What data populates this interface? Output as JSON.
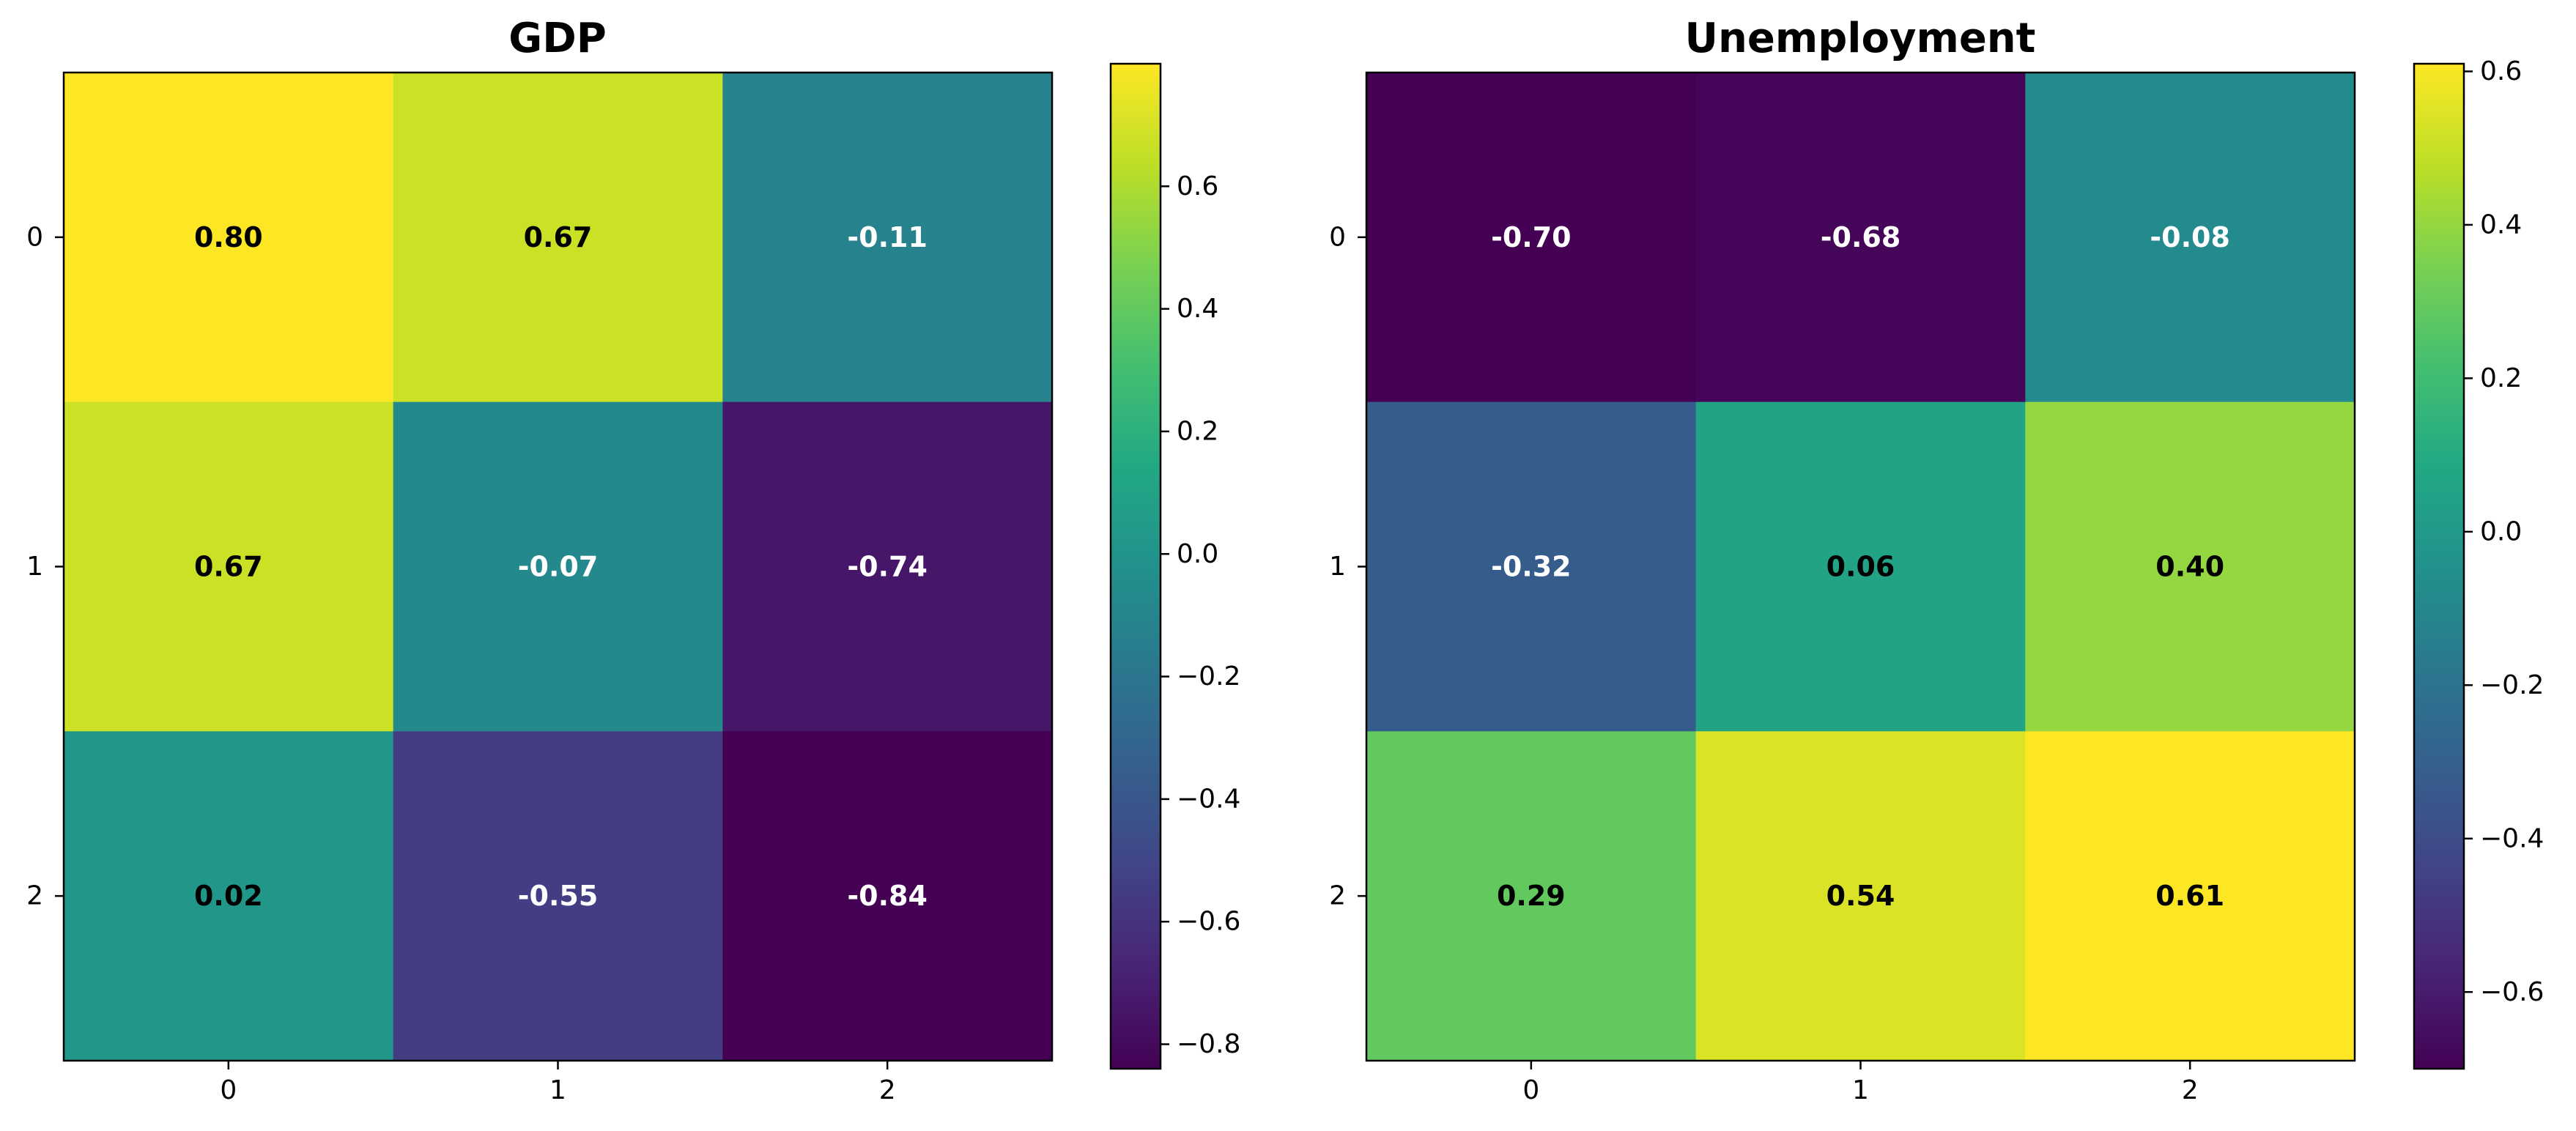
{
  "chart_data": [
    {
      "type": "heatmap",
      "title": "GDP",
      "xlabel": "",
      "ylabel": "",
      "x_ticks": [
        "0",
        "1",
        "2"
      ],
      "y_ticks": [
        "0",
        "1",
        "2"
      ],
      "values": [
        [
          0.8,
          0.67,
          -0.11
        ],
        [
          0.67,
          -0.07,
          -0.74
        ],
        [
          0.02,
          -0.55,
          -0.84
        ]
      ],
      "cell_labels": [
        [
          "0.80",
          "0.67",
          "-0.11"
        ],
        [
          "0.67",
          "-0.07",
          "-0.74"
        ],
        [
          "0.02",
          "-0.55",
          "-0.84"
        ]
      ],
      "colormap": "viridis",
      "color_range": [
        -0.84,
        0.8
      ],
      "colorbar_ticks": [
        -0.8,
        -0.6,
        -0.4,
        -0.2,
        0.0,
        0.2,
        0.4,
        0.6
      ],
      "colorbar_tick_labels": [
        "−0.8",
        "−0.6",
        "−0.4",
        "−0.2",
        "0.0",
        "0.2",
        "0.4",
        "0.6"
      ],
      "grid": false,
      "legend": "colorbar-right"
    },
    {
      "type": "heatmap",
      "title": "Unemployment",
      "xlabel": "",
      "ylabel": "",
      "x_ticks": [
        "0",
        "1",
        "2"
      ],
      "y_ticks": [
        "0",
        "1",
        "2"
      ],
      "values": [
        [
          -0.7,
          -0.68,
          -0.08
        ],
        [
          -0.32,
          0.06,
          0.4
        ],
        [
          0.29,
          0.54,
          0.61
        ]
      ],
      "cell_labels": [
        [
          "-0.70",
          "-0.68",
          "-0.08"
        ],
        [
          "-0.32",
          "0.06",
          "0.40"
        ],
        [
          "0.29",
          "0.54",
          "0.61"
        ]
      ],
      "colormap": "viridis",
      "color_range": [
        -0.7,
        0.61
      ],
      "colorbar_ticks": [
        -0.6,
        -0.4,
        -0.2,
        0.0,
        0.2,
        0.4,
        0.6
      ],
      "colorbar_tick_labels": [
        "−0.6",
        "−0.4",
        "−0.2",
        "0.0",
        "0.2",
        "0.4",
        "0.6"
      ],
      "grid": false,
      "legend": "colorbar-right"
    }
  ]
}
